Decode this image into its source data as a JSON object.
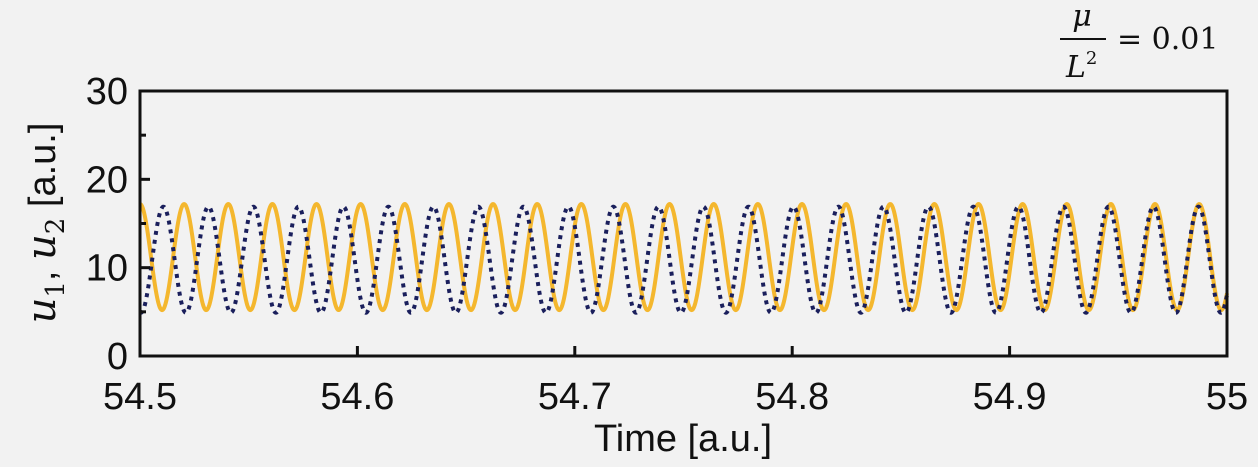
{
  "chart_data": {
    "type": "line",
    "title": "",
    "annotation": {
      "numerator": "μ",
      "denominator_base": "L",
      "denominator_exp": "2",
      "rhs": "= 0.01"
    },
    "xlabel": "Time [a.u.]",
    "ylabel": {
      "var1": "u",
      "sub1": "1",
      "sep": ", ",
      "var2": "u",
      "sub2": "2",
      "unit": " [a.u.]"
    },
    "xlim": [
      54.5,
      55.0
    ],
    "ylim": [
      0,
      30
    ],
    "x_ticks": [
      "54.5",
      "54.6",
      "54.7",
      "54.8",
      "54.9",
      "55"
    ],
    "x_tick_values": [
      54.5,
      54.6,
      54.7,
      54.8,
      54.9,
      55.0
    ],
    "y_ticks": [
      "0",
      "10",
      "20",
      "30"
    ],
    "y_tick_values": [
      0,
      10,
      20,
      30
    ],
    "y_minor_tick_values": [
      5,
      15,
      25
    ],
    "grid": false,
    "legend": "none",
    "series": [
      {
        "style": "solid",
        "color": "#f4b72e",
        "x_start": 54.5,
        "x_end": 55.0,
        "period": 0.0203,
        "phase": 0.0,
        "min": 5.2,
        "max": 17.2
      },
      {
        "style": "dotted",
        "color": "#1a1f5c",
        "x_start": 54.5,
        "x_end": 55.0,
        "period": 0.0207,
        "phase": 0.52,
        "min": 4.9,
        "max": 16.9
      }
    ]
  }
}
